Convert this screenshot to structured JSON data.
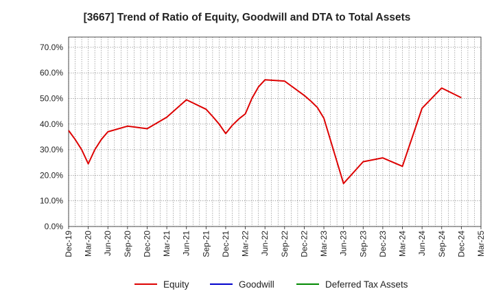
{
  "chart_data": {
    "type": "line",
    "title": "[3667]  Trend of Ratio of Equity, Goodwill and DTA to Total Assets",
    "xlabel": "",
    "ylabel": "",
    "ylim": [
      0,
      0.74
    ],
    "yticks": [
      0,
      0.1,
      0.2,
      0.3,
      0.4,
      0.5,
      0.6,
      0.7
    ],
    "ytick_labels": [
      "0.0%",
      "10.0%",
      "20.0%",
      "30.0%",
      "40.0%",
      "50.0%",
      "60.0%",
      "70.0%"
    ],
    "x_tick_labels": [
      "Dec-19",
      "Mar-20",
      "Jun-20",
      "Sep-20",
      "Dec-20",
      "Mar-21",
      "Jun-21",
      "Sep-21",
      "Dec-21",
      "Mar-22",
      "Jun-22",
      "Sep-22",
      "Dec-22",
      "Mar-23",
      "Jun-23",
      "Sep-23",
      "Dec-23",
      "Mar-24",
      "Jun-24",
      "Sep-24",
      "Dec-24",
      "Mar-25"
    ],
    "grid": true,
    "legend_position": "bottom",
    "series": [
      {
        "name": "Equity",
        "color": "#dd0000",
        "x": [
          "Dec-19",
          "Jan-20",
          "Feb-20",
          "Mar-20",
          "Apr-20",
          "May-20",
          "Jun-20",
          "Sep-20",
          "Dec-20",
          "Mar-21",
          "Jun-21",
          "Sep-21",
          "Oct-21",
          "Nov-21",
          "Dec-21",
          "Jan-22",
          "Feb-22",
          "Mar-22",
          "Apr-22",
          "May-22",
          "Jun-22",
          "Sep-22",
          "Dec-22",
          "Jan-23",
          "Feb-23",
          "Mar-23",
          "Jun-23",
          "Sep-23",
          "Dec-23",
          "Mar-24",
          "Jun-24",
          "Sep-24",
          "Dec-24"
        ],
        "values": [
          0.375,
          0.34,
          0.3,
          0.245,
          0.3,
          0.34,
          0.37,
          0.392,
          0.382,
          0.427,
          0.495,
          0.458,
          0.43,
          0.4,
          0.363,
          0.395,
          0.42,
          0.44,
          0.5,
          0.545,
          0.573,
          0.568,
          0.512,
          0.49,
          0.465,
          0.423,
          0.168,
          0.253,
          0.268,
          0.235,
          0.462,
          0.541,
          0.503
        ]
      },
      {
        "name": "Goodwill",
        "color": "#0000cc",
        "x": [],
        "values": []
      },
      {
        "name": "Deferred Tax Assets",
        "color": "#008800",
        "x": [],
        "values": []
      }
    ]
  }
}
